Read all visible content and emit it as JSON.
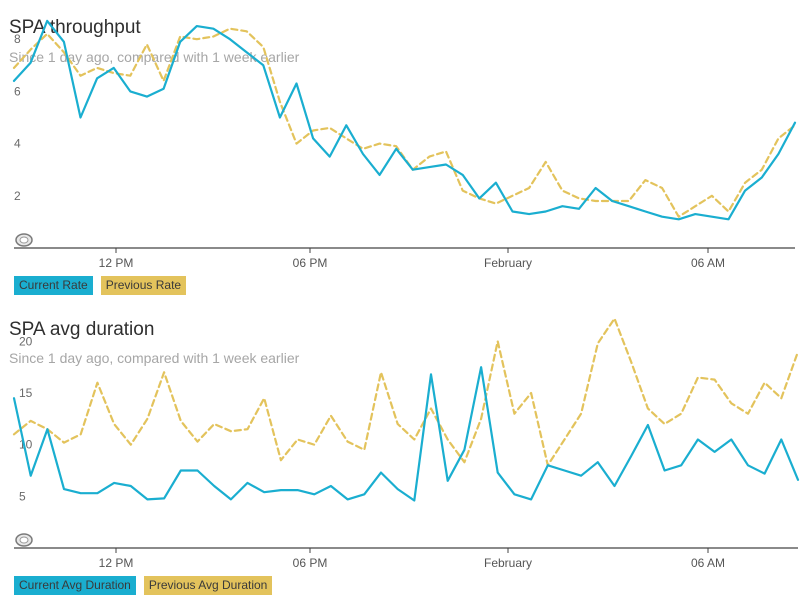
{
  "colors": {
    "current": "#1aaed0",
    "previous": "#e3c35c",
    "axis": "#444444"
  },
  "icons": {
    "reset_zoom": "reset-zoom-icon"
  },
  "chart_data": [
    {
      "type": "line",
      "title": "SPA throughput",
      "subtitle": "Since 1 day ago, compared with 1 week earlier",
      "x_ticks": [
        "12 PM",
        "06 PM",
        "February",
        "06 AM"
      ],
      "y_ticks": [
        2,
        4,
        6,
        8
      ],
      "ylim": [
        0,
        9.5
      ],
      "grid": false,
      "legend_position": "bottom-left",
      "series": [
        {
          "name": "Current Rate",
          "style": "solid",
          "color": "#1aaed0",
          "values": [
            6.4,
            7.1,
            8.7,
            7.9,
            5.0,
            6.5,
            6.9,
            6.0,
            5.8,
            6.1,
            7.9,
            8.5,
            8.4,
            8.0,
            7.5,
            7.0,
            5.0,
            6.3,
            4.2,
            3.5,
            4.7,
            3.6,
            2.8,
            3.8,
            3.0,
            3.1,
            3.2,
            2.8,
            1.9,
            2.5,
            1.4,
            1.3,
            1.4,
            1.6,
            1.5,
            2.3,
            1.8,
            1.6,
            1.4,
            1.2,
            1.1,
            1.3,
            1.2,
            1.1,
            2.2,
            2.7,
            3.6,
            4.8
          ]
        },
        {
          "name": "Previous Rate",
          "style": "dashed",
          "color": "#e3c35c",
          "values": [
            6.9,
            7.6,
            8.2,
            7.5,
            6.6,
            6.9,
            6.7,
            6.6,
            7.8,
            6.4,
            8.1,
            8.0,
            8.1,
            8.4,
            8.3,
            7.7,
            5.6,
            4.0,
            4.5,
            4.6,
            4.2,
            3.8,
            4.0,
            3.9,
            3.0,
            3.5,
            3.7,
            2.2,
            1.9,
            1.7,
            2.0,
            2.3,
            3.3,
            2.2,
            1.9,
            1.8,
            1.8,
            1.8,
            2.6,
            2.3,
            1.2,
            1.6,
            2.0,
            1.4,
            2.5,
            3.0,
            4.2,
            4.7
          ]
        }
      ]
    },
    {
      "type": "line",
      "title": "SPA avg duration",
      "subtitle": "Since 1 day ago, compared with 1 week earlier",
      "x_ticks": [
        "12 PM",
        "06 PM",
        "February",
        "06 AM"
      ],
      "y_ticks": [
        5,
        10,
        15,
        20
      ],
      "ylim": [
        0,
        24
      ],
      "grid": false,
      "legend_position": "bottom-left",
      "series": [
        {
          "name": "Current Avg Duration",
          "style": "solid",
          "color": "#1aaed0",
          "values": [
            14.5,
            7.0,
            11.5,
            5.7,
            5.3,
            5.3,
            6.3,
            6.0,
            4.7,
            4.8,
            7.5,
            7.5,
            6.0,
            4.7,
            6.3,
            5.4,
            5.6,
            5.6,
            5.2,
            6.0,
            4.7,
            5.2,
            7.3,
            5.7,
            4.6,
            16.8,
            6.5,
            9.5,
            17.5,
            7.3,
            5.2,
            4.7,
            8.0,
            7.5,
            7.0,
            8.3,
            6.0,
            8.9,
            11.9,
            7.5,
            8.0,
            10.5,
            9.3,
            10.5,
            8.0,
            7.2,
            10.5,
            6.6
          ]
        },
        {
          "name": "Previous Avg Duration",
          "style": "dashed",
          "color": "#e3c35c",
          "values": [
            11.0,
            12.3,
            11.5,
            10.2,
            11.0,
            16.0,
            12.0,
            10.0,
            12.5,
            17.0,
            12.3,
            10.3,
            12.0,
            11.3,
            11.5,
            14.5,
            8.5,
            10.5,
            10.0,
            12.8,
            10.3,
            9.5,
            17.0,
            12.0,
            10.5,
            13.5,
            10.5,
            8.3,
            12.5,
            20.0,
            13.0,
            15.0,
            8.0,
            10.5,
            13.0,
            19.8,
            22.2,
            18.0,
            13.5,
            12.0,
            13.0,
            16.5,
            16.3,
            14.0,
            13.0,
            16.0,
            14.5,
            19.0
          ]
        }
      ]
    }
  ]
}
